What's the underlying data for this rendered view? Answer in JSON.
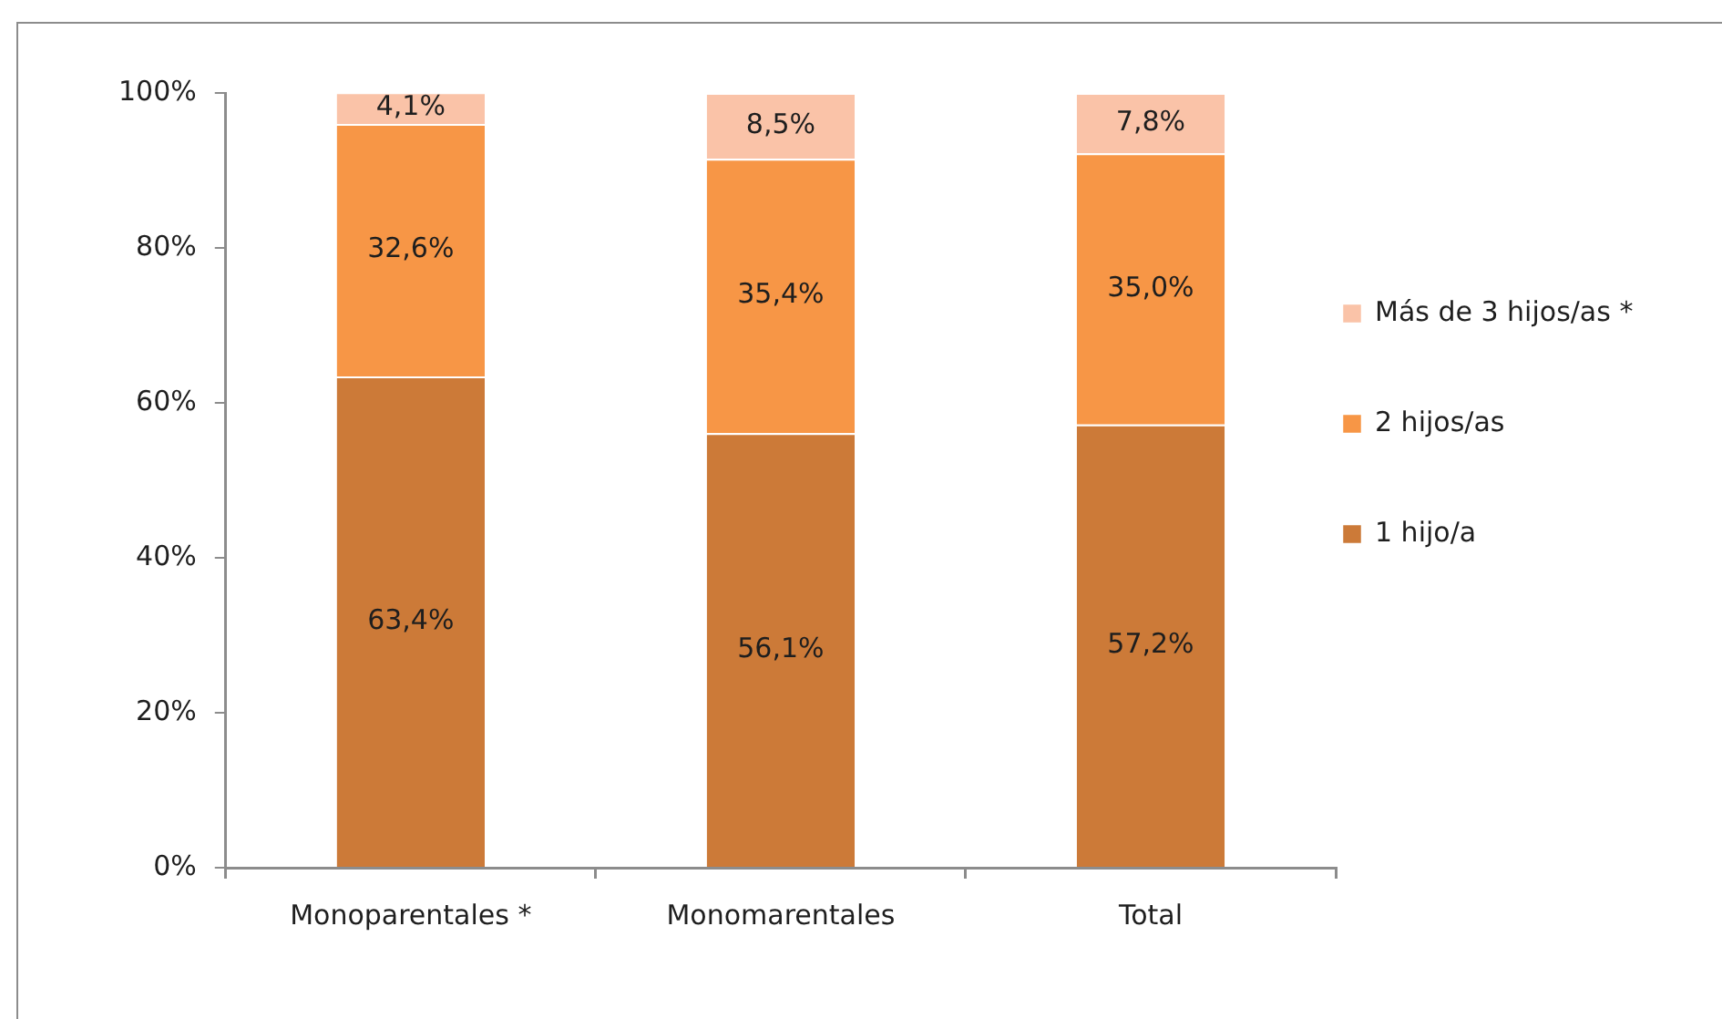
{
  "chart_data": {
    "type": "bar",
    "stacked": true,
    "categories": [
      "Monoparentales *",
      "Monomarentales",
      "Total"
    ],
    "series": [
      {
        "name": "1 hijo/a",
        "color": "#cc7a38",
        "values": [
          63.4,
          56.1,
          57.2
        ],
        "value_labels": [
          "63,4%",
          "56,1%",
          "57,2%"
        ]
      },
      {
        "name": "2 hijos/as",
        "color": "#f79646",
        "values": [
          32.6,
          35.4,
          35.0
        ],
        "value_labels": [
          "32,6%",
          "35,4%",
          "35,0%"
        ]
      },
      {
        "name": "Más de 3 hijos/as *",
        "color": "#fac3a8",
        "values": [
          4.1,
          8.5,
          7.8
        ],
        "value_labels": [
          "4,1%",
          "8,5%",
          "7,8%"
        ]
      }
    ],
    "ylim": [
      0,
      100
    ],
    "yticks": [
      {
        "value": 0,
        "label": "0%"
      },
      {
        "value": 20,
        "label": "20%"
      },
      {
        "value": 40,
        "label": "40%"
      },
      {
        "value": 60,
        "label": "60%"
      },
      {
        "value": 80,
        "label": "80%"
      },
      {
        "value": 100,
        "label": "100%"
      }
    ],
    "grid": false,
    "legend": "right"
  }
}
